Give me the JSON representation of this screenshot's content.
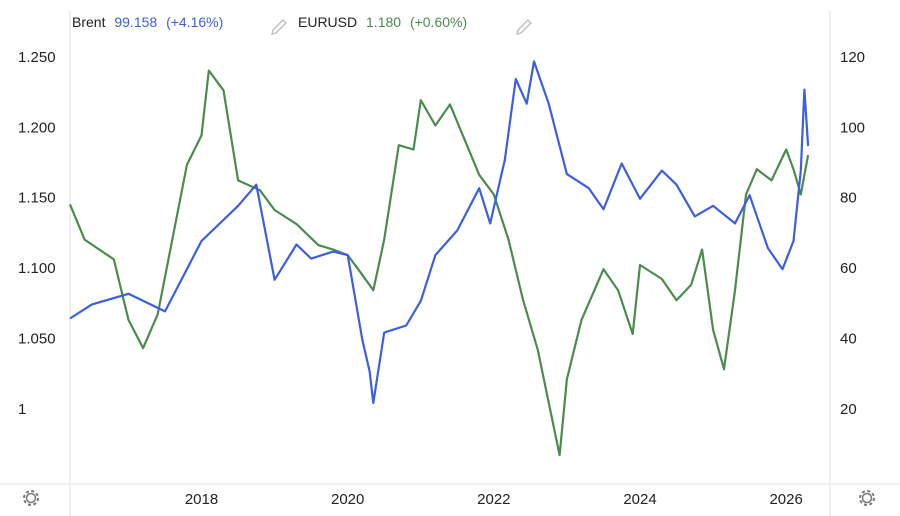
{
  "chart_data": {
    "type": "line",
    "legend": [
      {
        "name": "Brent",
        "readout": "99.158",
        "change": "(+4.16%)"
      },
      {
        "name": "EURUSD",
        "readout": "1.180",
        "change": "(+0.60%)"
      }
    ],
    "xlim": [
      2016.2,
      2026.6
    ],
    "xticks": [
      2018,
      2020,
      2022,
      2024,
      2026
    ],
    "ylim": [
      0.9475,
      1.284
    ],
    "yticks": [
      {
        "value": 1,
        "label": "1"
      },
      {
        "value": 1.05,
        "label": "1.050"
      },
      {
        "value": 1.1,
        "label": "1.100"
      },
      {
        "value": 1.15,
        "label": "1.150"
      },
      {
        "value": 1.2,
        "label": "1.200"
      },
      {
        "value": 1.25,
        "label": "1.250"
      }
    ],
    "y2lim": [
      -1,
      133.6
    ],
    "y2ticks": [
      20,
      40,
      60,
      80,
      100,
      120
    ],
    "series": [
      {
        "name": "EURUSD",
        "color": "#4b8c4e",
        "axis": "y",
        "x": [
          2016.2,
          2016.4,
          2016.6,
          2016.8,
          2017.0,
          2017.2,
          2017.4,
          2017.6,
          2017.8,
          2018.0,
          2018.1,
          2018.3,
          2018.5,
          2018.8,
          2019.0,
          2019.3,
          2019.6,
          2019.8,
          2020.0,
          2020.2,
          2020.35,
          2020.5,
          2020.7,
          2020.9,
          2021.0,
          2021.2,
          2021.4,
          2021.6,
          2021.8,
          2022.0,
          2022.2,
          2022.4,
          2022.6,
          2022.8,
          2022.9,
          2023.0,
          2023.2,
          2023.5,
          2023.7,
          2023.9,
          2024.0,
          2024.3,
          2024.5,
          2024.7,
          2024.85,
          2025.0,
          2025.15,
          2025.3,
          2025.45,
          2025.6,
          2025.8,
          2026.0,
          2026.1,
          2026.2,
          2026.3
        ],
        "values": [
          1.146,
          1.121,
          1.114,
          1.107,
          1.064,
          1.044,
          1.068,
          1.121,
          1.174,
          1.195,
          1.241,
          1.227,
          1.163,
          1.156,
          1.142,
          1.132,
          1.117,
          1.114,
          1.11,
          1.096,
          1.085,
          1.121,
          1.188,
          1.185,
          1.22,
          1.202,
          1.217,
          1.192,
          1.167,
          1.153,
          1.121,
          1.078,
          1.043,
          0.993,
          0.968,
          1.022,
          1.064,
          1.1,
          1.085,
          1.054,
          1.103,
          1.093,
          1.078,
          1.089,
          1.114,
          1.057,
          1.029,
          1.085,
          1.153,
          1.171,
          1.163,
          1.185,
          1.171,
          1.153,
          1.181
        ]
      },
      {
        "name": "Brent",
        "color": "#3b5fe0",
        "axis": "y2",
        "x": [
          2016.2,
          2016.5,
          2017.0,
          2017.5,
          2018.0,
          2018.5,
          2018.75,
          2019.0,
          2019.3,
          2019.5,
          2019.8,
          2020.0,
          2020.2,
          2020.3,
          2020.35,
          2020.5,
          2020.8,
          2021.0,
          2021.2,
          2021.5,
          2021.8,
          2021.95,
          2022.15,
          2022.3,
          2022.45,
          2022.55,
          2022.75,
          2023.0,
          2023.3,
          2023.5,
          2023.75,
          2024.0,
          2024.3,
          2024.5,
          2024.75,
          2025.0,
          2025.3,
          2025.5,
          2025.75,
          2025.95,
          2026.1,
          2026.2,
          2026.25,
          2026.3
        ],
        "values": [
          46,
          50,
          53,
          48,
          68,
          78,
          84,
          57,
          67,
          63,
          65,
          64,
          40,
          31,
          22,
          42,
          44,
          51,
          64,
          71,
          83,
          73,
          91,
          114,
          107,
          119,
          107,
          87,
          83,
          77,
          90,
          80,
          88,
          84,
          75,
          78,
          73,
          81,
          66,
          60,
          68,
          88,
          111,
          95
        ]
      }
    ]
  }
}
